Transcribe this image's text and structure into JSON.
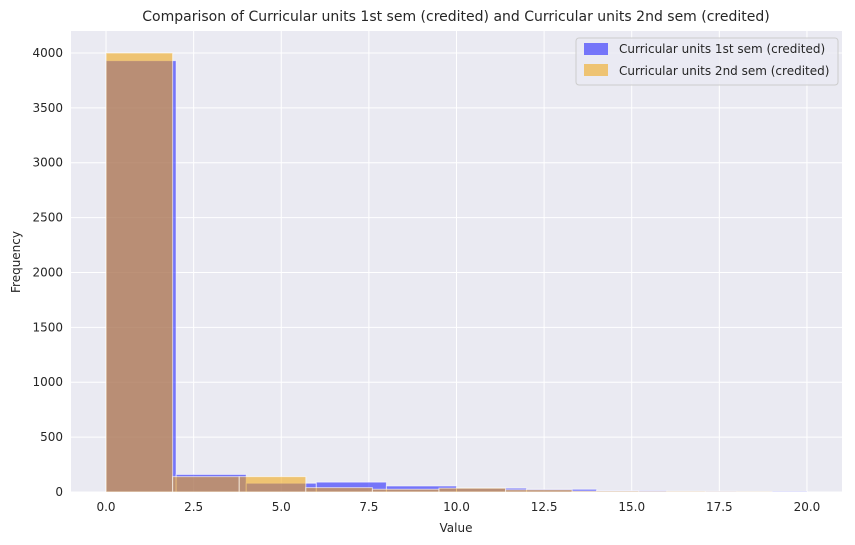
{
  "chart_data": {
    "type": "bar",
    "title": "Comparison of Curricular units 1st sem (credited) and Curricular units 2nd sem (credited)",
    "xlabel": "Value",
    "ylabel": "Frequency",
    "xlim": [
      -1,
      21
    ],
    "ylim": [
      0,
      4200
    ],
    "xticks": [
      "0.0",
      "2.5",
      "5.0",
      "7.5",
      "10.0",
      "12.5",
      "15.0",
      "17.5",
      "20.0"
    ],
    "xtick_values": [
      0,
      2.5,
      5,
      7.5,
      10,
      12.5,
      15,
      17.5,
      20
    ],
    "yticks": [
      "0",
      "500",
      "1000",
      "1500",
      "2000",
      "2500",
      "3000",
      "3500",
      "4000"
    ],
    "ytick_values": [
      0,
      500,
      1000,
      1500,
      2000,
      2500,
      3000,
      3500,
      4000
    ],
    "grid": true,
    "legend_position": "top-right",
    "series": [
      {
        "name": "Curricular units 1st sem (credited)",
        "color": "#0000ff",
        "opacity": 0.5,
        "bins": [
          [
            0.0,
            2.0,
            3930
          ],
          [
            2.0,
            4.0,
            160
          ],
          [
            4.0,
            6.0,
            80
          ],
          [
            6.0,
            8.0,
            90
          ],
          [
            8.0,
            10.0,
            55
          ],
          [
            10.0,
            12.0,
            35
          ],
          [
            12.0,
            14.0,
            25
          ],
          [
            14.0,
            16.0,
            12
          ],
          [
            16.0,
            18.0,
            6
          ],
          [
            18.0,
            20.0,
            4
          ]
        ]
      },
      {
        "name": "Curricular units 2nd sem (credited)",
        "color": "#f0a30a",
        "opacity": 0.55,
        "bins": [
          [
            0.0,
            1.9,
            4000
          ],
          [
            1.9,
            3.8,
            140
          ],
          [
            3.8,
            5.7,
            140
          ],
          [
            5.7,
            7.6,
            40
          ],
          [
            7.6,
            9.5,
            25
          ],
          [
            9.5,
            11.4,
            35
          ],
          [
            11.4,
            13.3,
            20
          ],
          [
            13.3,
            15.2,
            8
          ],
          [
            15.2,
            17.1,
            5
          ],
          [
            17.1,
            19.0,
            3
          ]
        ]
      }
    ]
  }
}
